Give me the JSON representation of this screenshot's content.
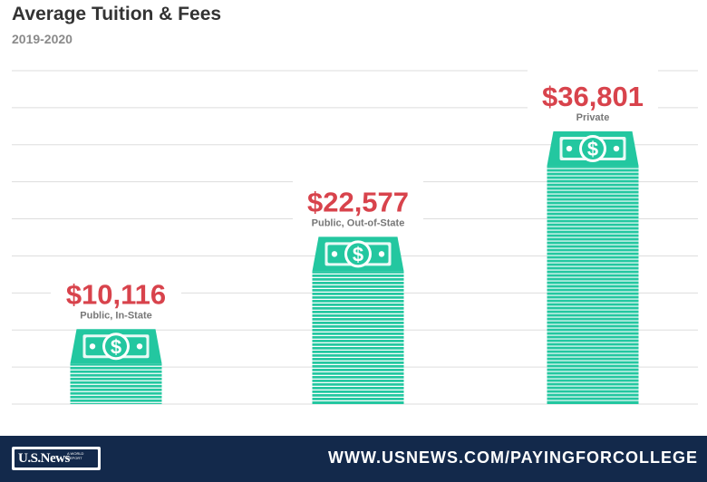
{
  "title": "Average Tuition & Fees",
  "subtitle": "2019-2020",
  "chart_data": {
    "type": "bar",
    "title": "Average Tuition & Fees",
    "subtitle": "2019-2020",
    "categories": [
      "Public, In-State",
      "Public, Out-of-State",
      "Private"
    ],
    "values": [
      10116,
      22577,
      36801
    ],
    "value_labels": [
      "$10,116",
      "$22,577",
      "$36,801"
    ],
    "ylim": [
      0,
      45000
    ],
    "grid": true,
    "bar_style": "stack-of-dollar-bills",
    "colors": {
      "bar": "#23c7a0",
      "stripe": "#ffffff",
      "value_label": "#d8434c",
      "category_label": "#777777",
      "grid": "#dddddd"
    }
  },
  "footer": {
    "logo_text": "U.S.News",
    "logo_tagline": "A WORLD REPORT",
    "url": "WWW.USNEWS.COM/PAYINGFORCOLLEGE"
  }
}
